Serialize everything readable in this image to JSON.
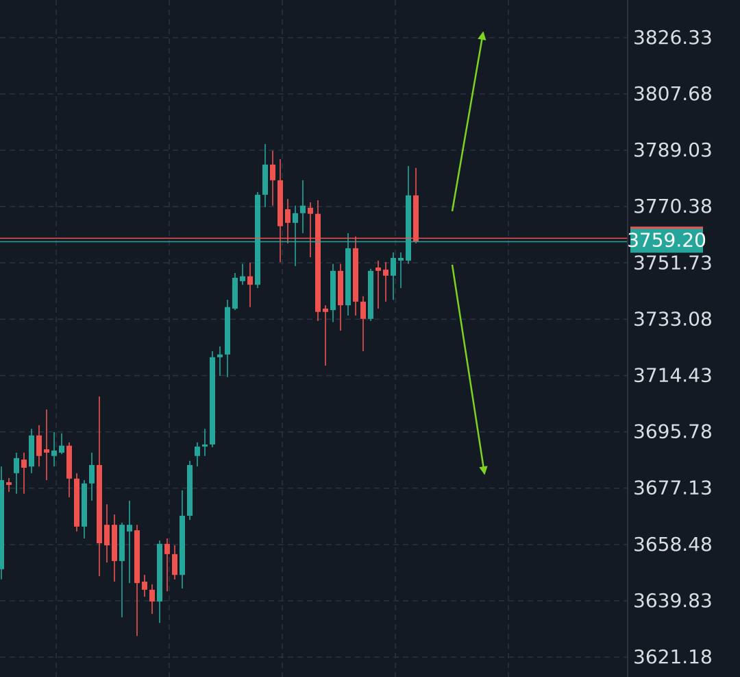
{
  "chart_data": {
    "type": "candlestick",
    "open": [
      3650.3,
      3679.1,
      3682.1,
      3686.6,
      3684.3,
      3694.6,
      3690.0,
      3687.8,
      3688.9,
      3691.2,
      3680.3,
      3664.4,
      3678.7,
      3684.8,
      3665.0,
      3665.0,
      3653.0,
      3662.8,
      3663.2,
      3646.2,
      3643.5,
      3639.6,
      3658.7,
      3655.3,
      3648.4,
      3668.0,
      3687.8,
      3690.9,
      3691.6,
      3720.5,
      3721.4,
      3736.6,
      3745.7,
      3747.3,
      3744.5,
      3774.3,
      3784.3,
      3779.1,
      3769.5,
      3765.0,
      3768.2,
      3770.0,
      3768.0,
      3736.6,
      3736.1,
      3749.1,
      3737.7,
      3756.6,
      3738.9,
      3733.2,
      3750.2,
      3749.5,
      3747.5,
      3752.5,
      3752.5,
      3774.1
    ],
    "high": [
      3684.3,
      3680.5,
      3688.9,
      3688.9,
      3696.8,
      3698.0,
      3703.2,
      3695.7,
      3695.3,
      3692.3,
      3682.1,
      3679.8,
      3688.9,
      3707.5,
      3671.8,
      3668.4,
      3665.7,
      3673.0,
      3665.0,
      3648.4,
      3645.3,
      3659.8,
      3660.5,
      3658.2,
      3676.4,
      3686.2,
      3692.3,
      3696.8,
      3722.5,
      3724.1,
      3739.5,
      3748.4,
      3751.4,
      3751.8,
      3775.2,
      3791.1,
      3788.9,
      3786.1,
      3772.9,
      3770.7,
      3779.1,
      3771.8,
      3772.5,
      3737.7,
      3751.4,
      3751.4,
      3761.6,
      3760.5,
      3740.7,
      3749.8,
      3752.5,
      3752.0,
      3755.2,
      3755.2,
      3783.8,
      3783.2
    ],
    "low": [
      3646.9,
      3675.9,
      3675.3,
      3675.3,
      3682.1,
      3684.3,
      3679.8,
      3684.3,
      3688.4,
      3674.1,
      3662.8,
      3660.5,
      3673.0,
      3648.0,
      3652.5,
      3646.2,
      3634.4,
      3645.7,
      3628.2,
      3641.2,
      3635.5,
      3632.5,
      3643.0,
      3646.9,
      3643.9,
      3666.6,
      3684.3,
      3687.8,
      3690.7,
      3714.3,
      3713.9,
      3736.1,
      3744.5,
      3737.1,
      3743.4,
      3770.2,
      3770.7,
      3752.0,
      3758.2,
      3750.7,
      3761.6,
      3753.6,
      3732.5,
      3717.7,
      3732.1,
      3729.3,
      3734.3,
      3734.3,
      3722.5,
      3732.5,
      3736.6,
      3738.9,
      3739.5,
      3743.4,
      3751.4,
      3758.2
    ],
    "close": [
      3679.8,
      3678.2,
      3687.1,
      3683.9,
      3694.6,
      3687.8,
      3688.9,
      3689.6,
      3691.2,
      3680.3,
      3664.4,
      3678.7,
      3684.8,
      3658.9,
      3658.2,
      3653.0,
      3665.0,
      3665.0,
      3645.7,
      3643.5,
      3639.6,
      3658.7,
      3655.3,
      3648.4,
      3668.0,
      3684.8,
      3690.9,
      3691.6,
      3720.5,
      3721.4,
      3737.1,
      3746.8,
      3747.3,
      3744.5,
      3774.3,
      3784.3,
      3779.1,
      3763.9,
      3765.0,
      3768.2,
      3770.7,
      3768.0,
      3735.5,
      3735.5,
      3749.1,
      3737.7,
      3756.6,
      3738.9,
      3733.2,
      3749.1,
      3749.1,
      3747.5,
      3753.4,
      3753.4,
      3774.1,
      3758.9
    ],
    "up_color": "#26a69a",
    "down_color": "#ef5350",
    "ylim": [
      3614.6,
      3838.8
    ],
    "yticks": [
      3826.33,
      3807.68,
      3789.03,
      3770.38,
      3751.73,
      3733.08,
      3714.43,
      3695.78,
      3677.13,
      3658.48,
      3639.83,
      3621.18
    ],
    "current_price": {
      "value": 3759.2,
      "label": "3759.20"
    },
    "grid": true
  }
}
